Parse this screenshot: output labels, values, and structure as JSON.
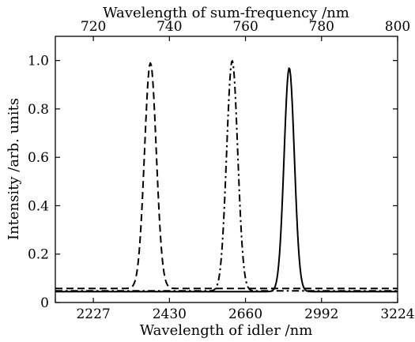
{
  "chart_data": {
    "type": "line",
    "title": "",
    "xlabel": "Wavelength of idler /nm",
    "x2label": "Wavelength of sum-frequency /nm",
    "ylabel": "Intensity /arb. units",
    "xlim": [
      710,
      800
    ],
    "ylim": [
      0,
      1.1
    ],
    "bottom_ticks": [
      {
        "at": 710,
        "label": ""
      },
      {
        "at": 720,
        "label": "2227"
      },
      {
        "at": 740,
        "label": "2430"
      },
      {
        "at": 760,
        "label": "2660"
      },
      {
        "at": 780,
        "label": "2992"
      },
      {
        "at": 800,
        "label": "3224"
      }
    ],
    "top_ticks": [
      {
        "at": 720,
        "label": "720"
      },
      {
        "at": 740,
        "label": "740"
      },
      {
        "at": 760,
        "label": "760"
      },
      {
        "at": 780,
        "label": "780"
      },
      {
        "at": 800,
        "label": "800"
      }
    ],
    "yticks": [
      {
        "value": 0,
        "label": "0"
      },
      {
        "value": 0.2,
        "label": "0.2"
      },
      {
        "value": 0.4,
        "label": "0.4"
      },
      {
        "value": 0.6,
        "label": "0.6"
      },
      {
        "value": 0.8,
        "label": "0.8"
      },
      {
        "value": 1.0,
        "label": "1.0"
      }
    ],
    "grid": false,
    "legend": "none",
    "series": [
      {
        "style": "dashed",
        "center": 735,
        "peak": 0.99,
        "sigma": 1.55,
        "baseline": 0.058
      },
      {
        "style": "dash-dot",
        "center": 756.5,
        "peak": 1.0,
        "sigma": 1.45,
        "baseline": 0.048
      },
      {
        "style": "solid",
        "center": 771.5,
        "peak": 0.97,
        "sigma": 1.35,
        "baseline": 0.045
      }
    ]
  }
}
